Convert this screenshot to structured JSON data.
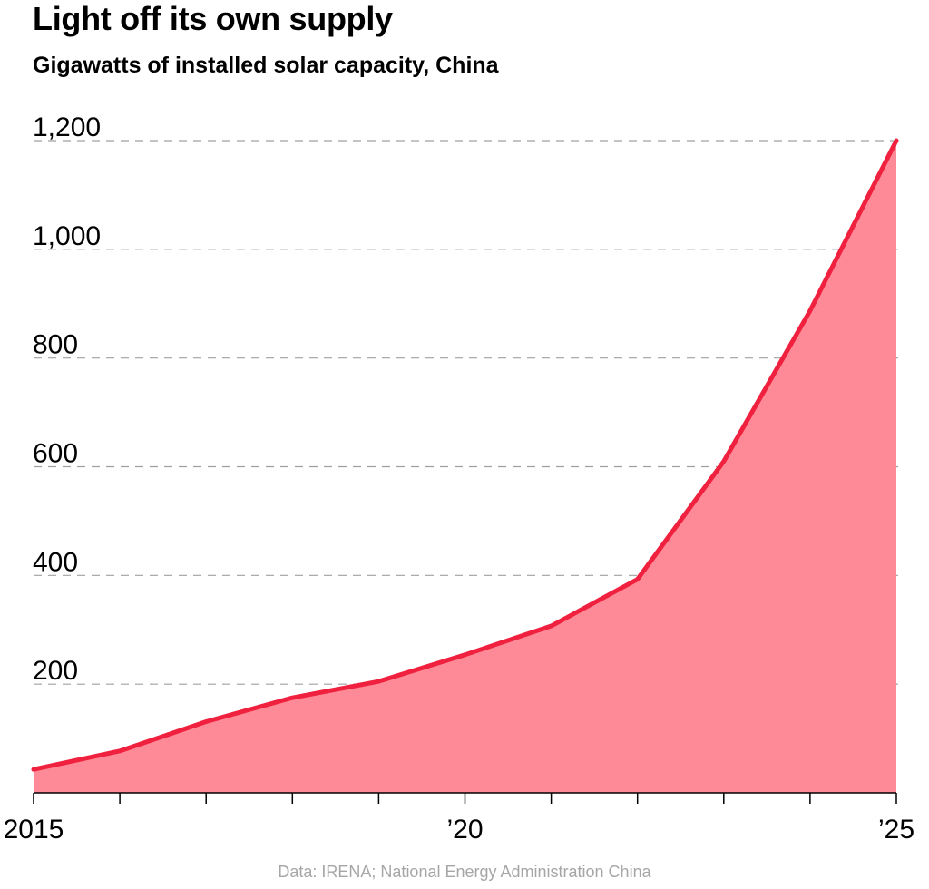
{
  "title": "Light off its own supply",
  "subtitle": "Gigawatts of installed solar capacity, China",
  "source": "Data: IRENA; National Energy Administration China",
  "colors": {
    "line": "#f0213f",
    "area": "#ff8a97",
    "grid": "#a0a0a0",
    "text": "#000000",
    "source_text": "#a6a6a6"
  },
  "chart_data": {
    "type": "area",
    "title": "Light off its own supply",
    "subtitle": "Gigawatts of installed solar capacity, China",
    "xlabel": "",
    "ylabel": "",
    "x": [
      2015,
      2016,
      2017,
      2018,
      2019,
      2020,
      2021,
      2022,
      2023,
      2024,
      2025
    ],
    "values": [
      43,
      77,
      131,
      175,
      205,
      254,
      307,
      393,
      610,
      887,
      1200
    ],
    "ylim": [
      0,
      1200
    ],
    "xlim": [
      2015,
      2025
    ],
    "y_ticks": [
      200,
      400,
      600,
      800,
      1000,
      1200
    ],
    "y_tick_labels": [
      "200",
      "400",
      "600",
      "800",
      "1,000",
      "1,200"
    ],
    "x_tick_labels": [
      {
        "x": 2015,
        "label": "2015"
      },
      {
        "x": 2020,
        "label": "’20"
      },
      {
        "x": 2025,
        "label": "’25"
      }
    ],
    "grid": "horizontal dashed",
    "legend": "none"
  }
}
